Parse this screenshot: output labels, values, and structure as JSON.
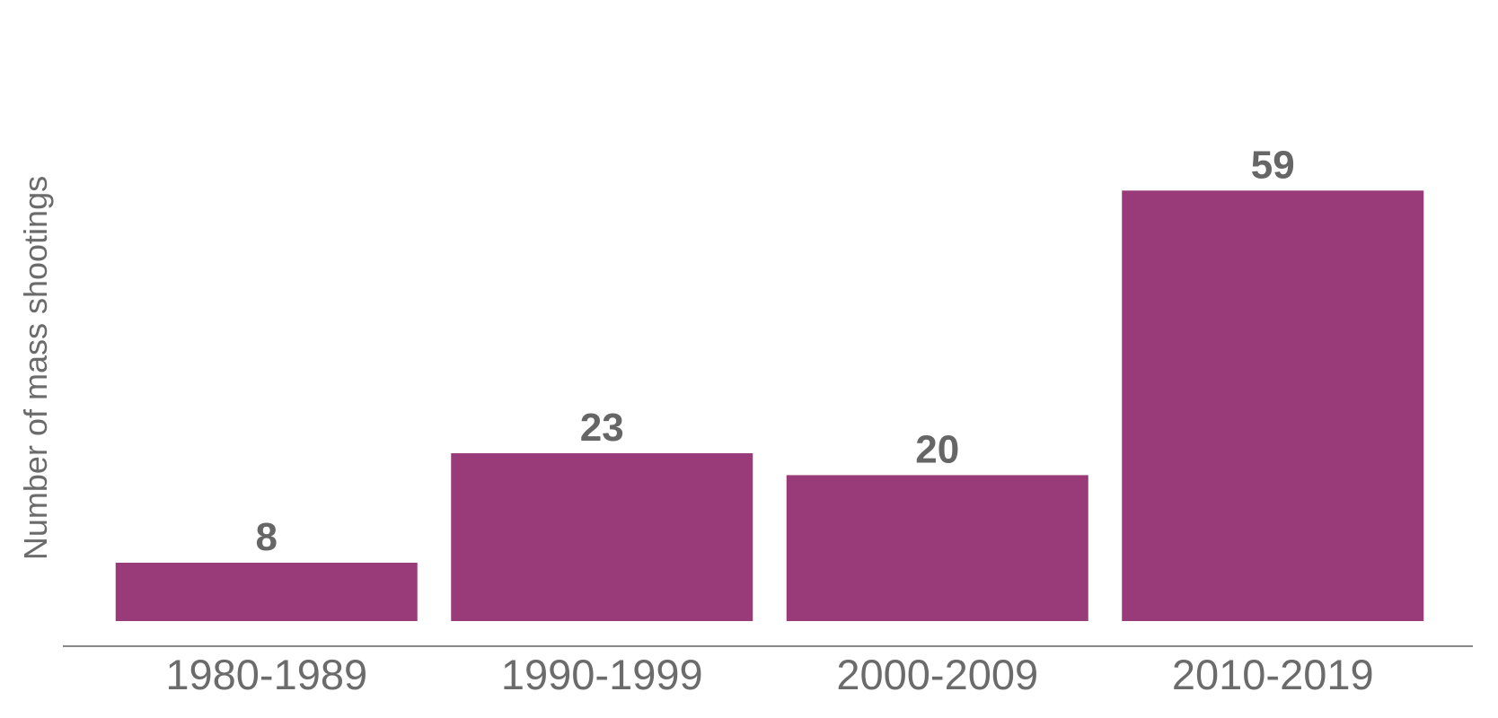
{
  "chart_data": {
    "type": "bar",
    "title": "",
    "xlabel": "",
    "ylabel": "Number of mass shootings",
    "categories": [
      "1980-1989",
      "1990-1999",
      "2000-2009",
      "2010-2019"
    ],
    "values": [
      8,
      23,
      20,
      59
    ],
    "data_labels": [
      "8",
      "23",
      "20",
      "59"
    ],
    "ylim": [
      0,
      70
    ],
    "grid": false,
    "legend": "none",
    "colors": {
      "bar": "#983b78",
      "axis": "#888888",
      "text": "#6b6b6b"
    }
  }
}
